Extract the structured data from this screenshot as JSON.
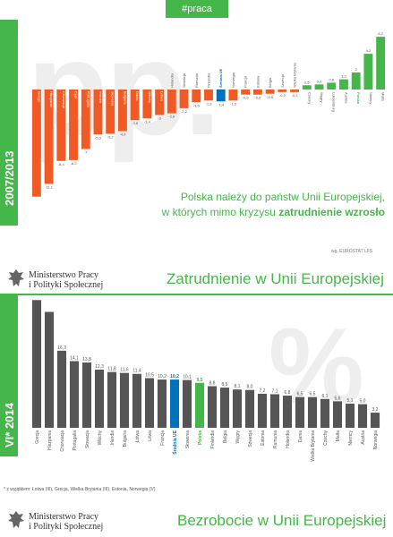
{
  "hashtag": "#praca",
  "colors": {
    "orange": "#f15a24",
    "blue": "#0072bc",
    "green": "#45b649",
    "grey": "#555555",
    "header_green": "#45b649"
  },
  "section1": {
    "period_label": "2007/2013",
    "big_letters": "pp.",
    "headline_line1": "Polska należy do państw Unii Europejskiej,",
    "headline_line2_prefix": "w których mimo kryzysu ",
    "headline_line2_bold": "zatrudnienie wzrosło",
    "source": "wg. EUROSTAT LFS"
  },
  "ministry": {
    "line1": "Ministerstwo Pracy",
    "line2": "i Polityki Społecznej"
  },
  "section2": {
    "title": "Zatrudnienie w Unii Europejskiej",
    "period_label": "VI* 2014",
    "big_letters": "%",
    "note": "* z wyjątkiem: Łotwa (III), Grecja, Wielka Brytania (III), Estonia, Norwegia (V)"
  },
  "footer": {
    "title": "Bezrobocie w Unii Europejskiej"
  },
  "chart_data": [
    {
      "type": "bar",
      "title": "Polska należy do państw Unii Europejskiej, w których mimo kryzysu zatrudnienie wzrosło",
      "xlabel": "",
      "ylabel": "",
      "ylim": [
        -13,
        7
      ],
      "categories": [
        "Grecja",
        "Hiszpania",
        "Chorwacja",
        "Cypr",
        "Portugalia",
        "Irlandia",
        "Słowenia",
        "Bułgaria",
        "Dania",
        "Włochy",
        "Łotwa",
        "Holandia",
        "Słowacja",
        "Rumunia",
        "Finlandia",
        "Średnia UE",
        "Norwegia",
        "Francja",
        "Estonia",
        "Belgia",
        "Szwecja",
        "Wielka Brytania",
        "Czechy",
        "Węgry",
        "Luksemburg",
        "Austria",
        "Polska",
        "Niemcy",
        "Malta"
      ],
      "values": [
        -12.6,
        -11.1,
        -8.4,
        -8.3,
        -7.0,
        -5.3,
        -5.2,
        -4.9,
        -3.6,
        -3.4,
        -3.0,
        -2.8,
        -2.2,
        -1.5,
        -1.3,
        -1.4,
        -1.3,
        -0.6,
        -0.6,
        -0.5,
        -0.3,
        -0.3,
        0.5,
        0.6,
        0.8,
        1.2,
        2.0,
        4.2,
        6.2
      ],
      "value_labels": [
        "-12,6",
        "-11,1",
        "-8,4",
        "-8,3",
        "-7",
        "-5,3",
        "-5,2",
        "-4,9",
        "-3,6",
        "-3,4",
        "-3",
        "-2,8",
        "-2,2",
        "-1,5",
        "-1,3",
        "-1,4",
        "-1,3",
        "-0,6",
        "-0,6",
        "-0,5",
        "-0,3",
        "-0,3",
        "0,5",
        "0,6",
        "0,8",
        "1,2",
        "2",
        "4,2",
        "6,2"
      ],
      "highlight": {
        "Średnia UE": "blue",
        "Polska": "green"
      },
      "grid": false,
      "legend": "none"
    },
    {
      "type": "bar",
      "title": "Zatrudnienie w Unii Europejskiej",
      "xlabel": "",
      "ylabel": "",
      "ylim": [
        0,
        28
      ],
      "categories": [
        "Grecja",
        "Hiszpania",
        "Chorwacja",
        "Portugalia",
        "Słowacja",
        "Włochy",
        "Irlandia",
        "Bułgaria",
        "Łotwa",
        "Litwa",
        "Francja",
        "Średnia UE",
        "Słowenia",
        "Polska",
        "Finlandia",
        "Belgia",
        "Węgry",
        "Szwecja",
        "Estonia",
        "Rumunia",
        "Holandia",
        "Dania",
        "Wielka Brytania",
        "Czechy",
        "Malta",
        "Niemcy",
        "Austria",
        "Norwegia"
      ],
      "values": [
        27.0,
        24.5,
        16.3,
        14.1,
        13.8,
        12.3,
        11.8,
        11.6,
        11.4,
        10.5,
        10.2,
        10.2,
        10.1,
        9.5,
        8.8,
        8.5,
        8.1,
        8.0,
        7.2,
        7.1,
        6.8,
        6.5,
        6.5,
        6.1,
        5.6,
        5.1,
        5.0,
        3.2
      ],
      "value_labels": [
        "",
        "",
        "16,3",
        "14,1",
        "13,8",
        "12,3",
        "11,8",
        "11,6",
        "11,4",
        "10,5",
        "10,2",
        "10,2",
        "10,1",
        "9,5",
        "8,8",
        "8,5",
        "8,1",
        "8,0",
        "7,2",
        "7,1",
        "6,8",
        "6,5",
        "6,5",
        "6,1",
        "5,6",
        "5,1",
        "5,0",
        "3,2"
      ],
      "highlight": {
        "Średnia UE": "blue",
        "Polska": "green"
      },
      "grid": false,
      "legend": "none"
    }
  ]
}
